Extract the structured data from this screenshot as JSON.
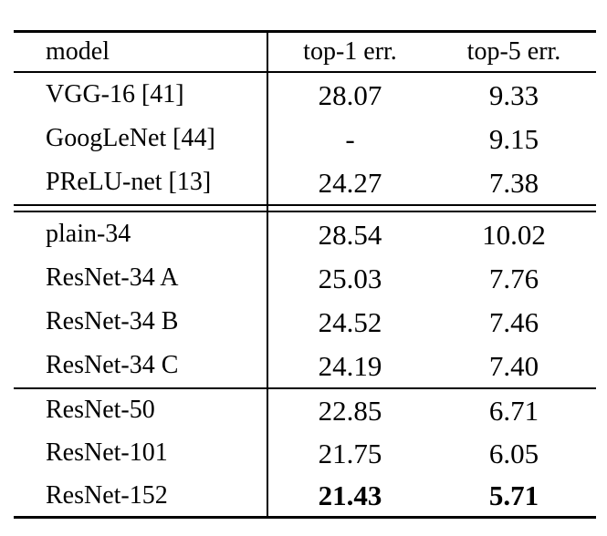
{
  "chart_data": {
    "type": "table",
    "title": "",
    "columns": [
      "model",
      "top-1 err.",
      "top-5 err."
    ],
    "layout": {
      "divider_after_column": "model",
      "text_color": "#000000",
      "background_color": "#ffffff",
      "rule_color": "#000000"
    },
    "sections": [
      {
        "rows": [
          {
            "model": "VGG-16 [41]",
            "top1": "28.07",
            "top5": "9.33",
            "bold": false
          },
          {
            "model": "GoogLeNet [44]",
            "top1": "-",
            "top5": "9.15",
            "bold": false
          },
          {
            "model": "PReLU-net [13]",
            "top1": "24.27",
            "top5": "7.38",
            "bold": false
          }
        ]
      },
      {
        "rows": [
          {
            "model": "plain-34",
            "top1": "28.54",
            "top5": "10.02",
            "bold": false
          },
          {
            "model": "ResNet-34 A",
            "top1": "25.03",
            "top5": "7.76",
            "bold": false
          },
          {
            "model": "ResNet-34 B",
            "top1": "24.52",
            "top5": "7.46",
            "bold": false
          },
          {
            "model": "ResNet-34 C",
            "top1": "24.19",
            "top5": "7.40",
            "bold": false
          }
        ]
      },
      {
        "rows": [
          {
            "model": "ResNet-50",
            "top1": "22.85",
            "top5": "6.71",
            "bold": false
          },
          {
            "model": "ResNet-101",
            "top1": "21.75",
            "top5": "6.05",
            "bold": false
          },
          {
            "model": "ResNet-152",
            "top1": "21.43",
            "top5": "5.71",
            "bold": true
          }
        ]
      }
    ]
  }
}
